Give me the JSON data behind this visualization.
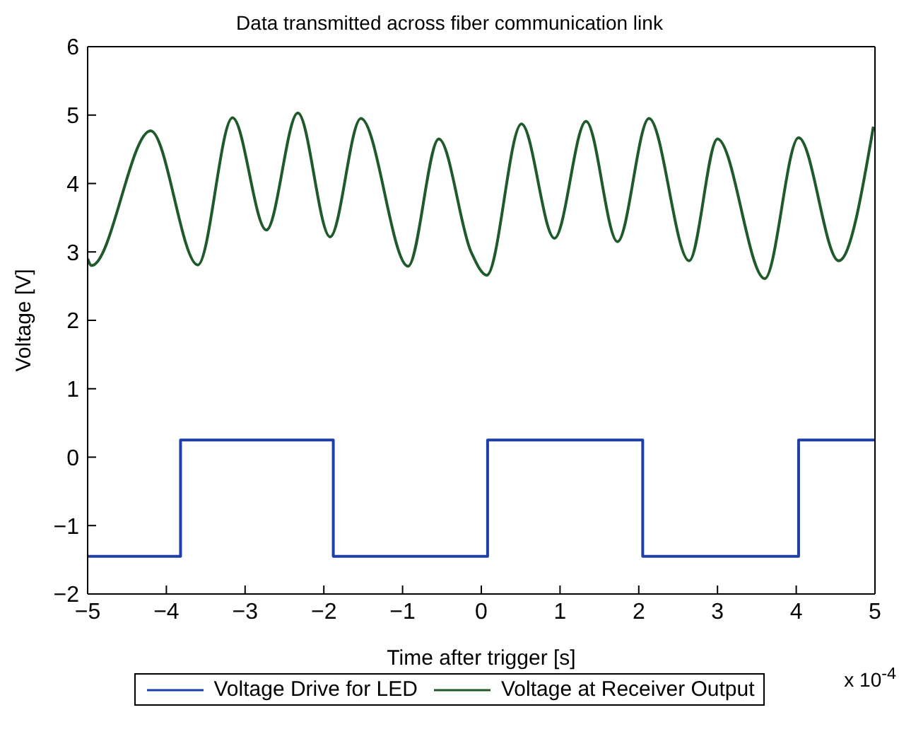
{
  "chart_data": {
    "type": "line",
    "title": "Data transmitted across fiber communication link",
    "xlabel": "Time after trigger [s]",
    "ylabel": "Voltage [V]",
    "annotations": [
      "x 10$^{-4}$"
    ],
    "xlim": [
      -5,
      5
    ],
    "xticks": [
      -5,
      -4,
      -3,
      -2,
      -1,
      0,
      1,
      2,
      3,
      4,
      5
    ],
    "ylim": [
      -2,
      6
    ],
    "yticks": [
      -2,
      -1,
      0,
      1,
      2,
      3,
      4,
      5,
      6
    ],
    "grid": false,
    "legend": "bottom",
    "marker": "none",
    "line_style": "solid",
    "series": [
      {
        "name": "Voltage Drive for LED",
        "color": "#1f3fa8",
        "x": [
          -5,
          -3.82,
          -3.82,
          -1.88,
          -1.88,
          0.08,
          0.08,
          2.05,
          2.05,
          4.03,
          4.03,
          5
        ],
        "values": [
          -1.45,
          -1.45,
          0.25,
          0.25,
          -1.45,
          -1.45,
          0.25,
          0.25,
          -1.45,
          -1.45,
          0.25,
          0.25
        ]
      },
      {
        "name": "Voltage at Receiver Output",
        "color": "#1e5a2a",
        "x": [
          -5,
          -4.95,
          -4.2,
          -3.6,
          -3.16,
          -2.73,
          -2.33,
          -1.92,
          -1.53,
          -0.93,
          -0.54,
          -0.13,
          0.07,
          0.51,
          0.93,
          1.33,
          1.73,
          2.13,
          2.64,
          3.0,
          3.6,
          4.03,
          4.54,
          4.98
        ],
        "values": [
          2.9,
          2.8,
          4.77,
          2.81,
          4.96,
          3.32,
          5.03,
          3.22,
          4.95,
          2.79,
          4.65,
          3.0,
          2.66,
          4.87,
          3.2,
          4.91,
          3.15,
          4.95,
          2.87,
          4.65,
          2.61,
          4.67,
          2.87,
          4.83
        ]
      }
    ]
  }
}
